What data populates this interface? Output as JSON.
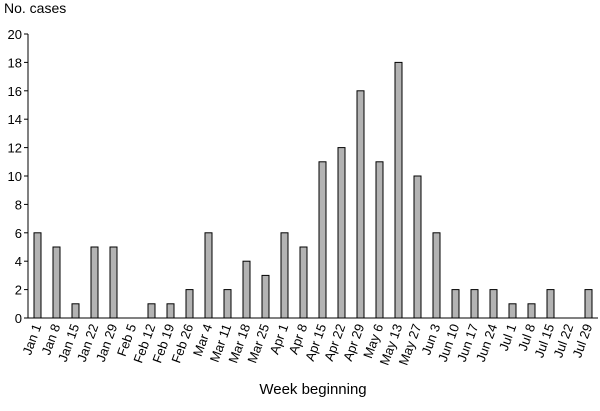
{
  "chart_data": {
    "type": "bar",
    "y_label": "No. cases",
    "x_label": "Week beginning",
    "categories": [
      "Jan 1",
      "Jan 8",
      "Jan 15",
      "Jan 22",
      "Jan 29",
      "Feb 5",
      "Feb 12",
      "Feb 19",
      "Feb 26",
      "Mar 4",
      "Mar 11",
      "Mar 18",
      "Mar 25",
      "Apr 1",
      "Apr 8",
      "Apr 15",
      "Apr 22",
      "Apr 29",
      "May 6",
      "May 13",
      "May 27",
      "Jun 3",
      "Jun 10",
      "Jun 17",
      "Jun 24",
      "Jul 1",
      "Jul 8",
      "Jul 15",
      "Jul 22",
      "Jul 29"
    ],
    "values": [
      6,
      5,
      1,
      5,
      5,
      0,
      1,
      1,
      2,
      6,
      2,
      4,
      3,
      6,
      5,
      11,
      12,
      16,
      11,
      18,
      10,
      6,
      2,
      2,
      2,
      1,
      1,
      2,
      0,
      2
    ],
    "color": "#b3b3b3",
    "ylim": [
      0,
      20
    ],
    "yticks": [
      0,
      2,
      4,
      6,
      8,
      10,
      12,
      14,
      16,
      18,
      20
    ],
    "grid": false
  }
}
